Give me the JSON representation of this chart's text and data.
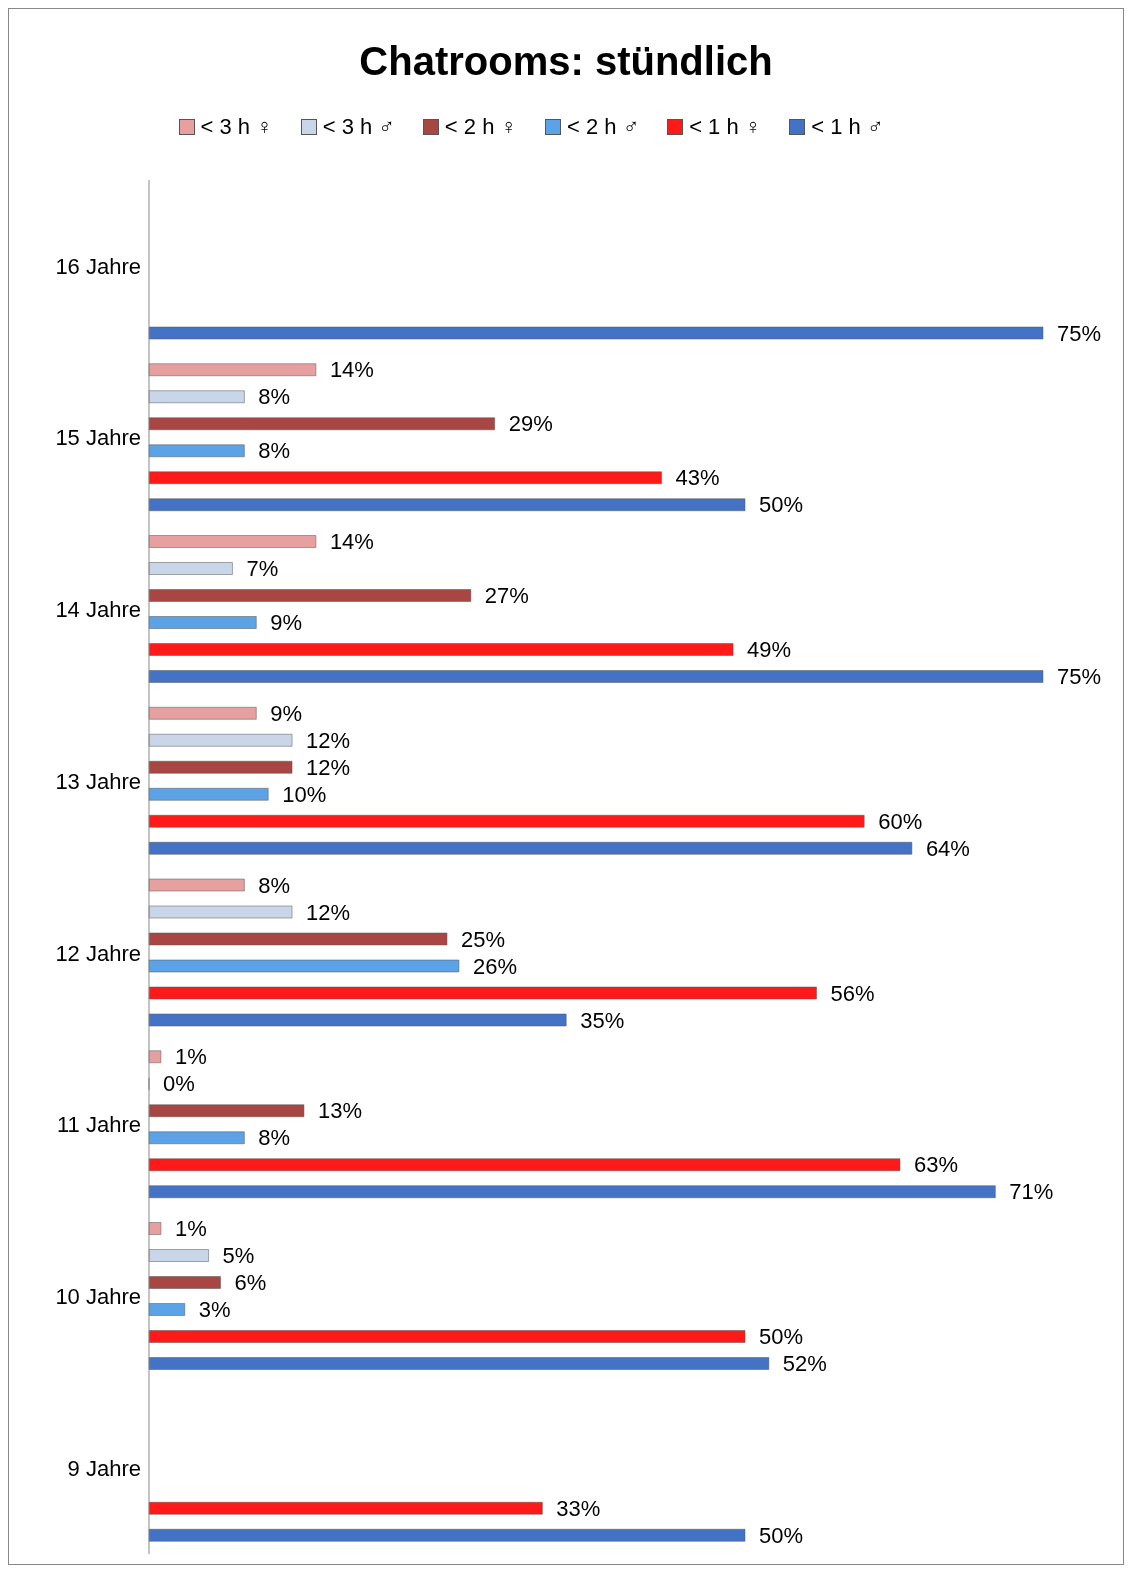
{
  "chart_data": {
    "type": "bar",
    "orientation": "horizontal",
    "title": "Chatrooms: stündlich",
    "legend": "top",
    "categories": [
      "16 Jahre",
      "15 Jahre",
      "14 Jahre",
      "13 Jahre",
      "12 Jahre",
      "11 Jahre",
      "10 Jahre",
      "9 Jahre"
    ],
    "series": [
      {
        "name": "< 3 h ♀",
        "color": "#e6a09f",
        "values": [
          null,
          14,
          14,
          9,
          8,
          1,
          1,
          null
        ],
        "value_labels": [
          null,
          "14%",
          "14%",
          "9%",
          "8%",
          "1%",
          "1%",
          null
        ]
      },
      {
        "name": "< 3 h ♂",
        "color": "#c9d6ea",
        "values": [
          null,
          8,
          7,
          12,
          12,
          0,
          5,
          null
        ],
        "value_labels": [
          null,
          "8%",
          "7%",
          "12%",
          "12%",
          "0%",
          "5%",
          null
        ]
      },
      {
        "name": "< 2 h ♀",
        "color": "#a84644",
        "values": [
          null,
          29,
          27,
          12,
          25,
          13,
          6,
          null
        ],
        "value_labels": [
          null,
          "29%",
          "27%",
          "12%",
          "25%",
          "13%",
          "6%",
          null
        ]
      },
      {
        "name": "< 2 h ♂",
        "color": "#5ba3e6",
        "values": [
          null,
          8,
          9,
          10,
          26,
          8,
          3,
          null
        ],
        "value_labels": [
          null,
          "8%",
          "9%",
          "10%",
          "26%",
          "8%",
          "3%",
          null
        ]
      },
      {
        "name": "< 1 h ♀",
        "color": "#ff1a1a",
        "values": [
          null,
          43,
          49,
          60,
          56,
          63,
          50,
          33
        ],
        "value_labels": [
          null,
          "43%",
          "49%",
          "60%",
          "56%",
          "63%",
          "50%",
          "33%"
        ]
      },
      {
        "name": "< 1 h ♂",
        "color": "#4472c4",
        "values": [
          75,
          50,
          75,
          64,
          35,
          71,
          52,
          50
        ],
        "value_labels": [
          "75%",
          "50%",
          "75%",
          "64%",
          "35%",
          "71%",
          "52%",
          "50%"
        ]
      }
    ]
  }
}
